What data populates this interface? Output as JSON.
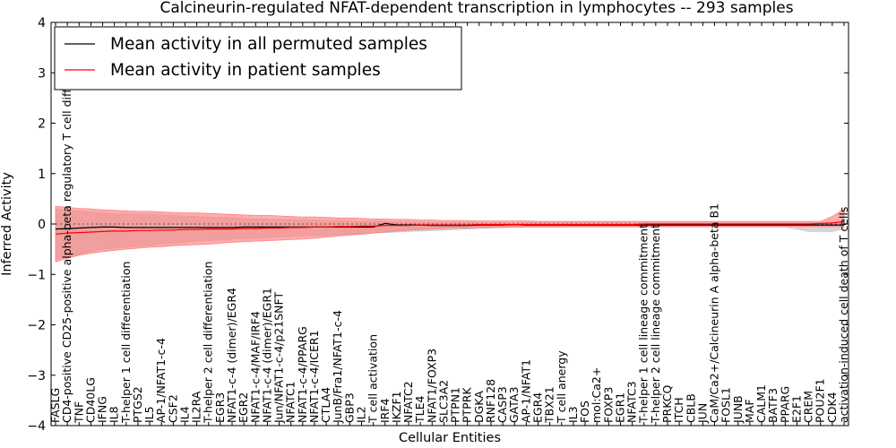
{
  "chart_data": {
    "type": "line",
    "title": "Calcineurin-regulated NFAT-dependent transcription in lymphocytes -- 293 samples",
    "xlabel": "Cellular Entities",
    "ylabel": "Inferred Activity",
    "ylim": [
      -4,
      4
    ],
    "yticks": [
      -4,
      -3,
      -2,
      -1,
      0,
      1,
      2,
      3,
      4
    ],
    "reference_line": 0,
    "legend": {
      "position": "top-left",
      "entries": [
        {
          "label": "Mean activity in all permuted samples",
          "color": "#000000"
        },
        {
          "label": "Mean activity in patient samples",
          "color": "#ff0000"
        }
      ]
    },
    "categories": [
      "FASLG",
      "CD4-positive CD25-positive alpha-beta regulatory T cell differentiation",
      "TNF",
      "CD40LG",
      "IFNG",
      "IL8",
      "T-helper 1 cell differentiation",
      "PTGS2",
      "IL5",
      "AP-1/NFAT1-c-4",
      "CSF2",
      "IL4",
      "IL2RA",
      "T-helper 2 cell differentiation",
      "EGR3",
      "NFAT1-c-4 (dimer)/EGR4",
      "EGR2",
      "NFAT1-c-4/MAF/IRF4",
      "NFAT1-c-4 (dimer)/EGR1",
      "Jun/NFAT1-c-4/p21SNFT",
      "NFATC1",
      "NFAT1-c-4/PPARG",
      "NFAT1-c-4/ICER1",
      "CTLA4",
      "JunB/Fra1/NFAT1-c-4",
      "GBP3",
      "IL2",
      "T cell activation",
      "IRF4",
      "IKZF1",
      "NFATC2",
      "TLE4",
      "NFAT1/FOXP3",
      "SLC3A2",
      "PTPN1",
      "PTPRK",
      "DGKA",
      "RNF128",
      "CASP3",
      "GATA3",
      "AP-1/NFAT1",
      "EGR4",
      "TBX21",
      "T cell anergy",
      "IL3",
      "FOS",
      "mol:Ca2+",
      "FOXP3",
      "EGR1",
      "NFATC3",
      "T-helper 1 cell lineage commitment",
      "T-helper 2 cell lineage commitment",
      "PRKCQ",
      "ITCH",
      "CBLB",
      "JUN",
      "CaM/Ca2+/Calcineurin A alpha-beta B1",
      "FOSL1",
      "JUNB",
      "MAF",
      "CALM1",
      "BATF3",
      "PPARG",
      "E2F1",
      "CREM",
      "POU2F1",
      "CDK4",
      "activation-induced cell death of T cells"
    ],
    "series": [
      {
        "name": "Mean activity in all permuted samples",
        "color": "#000000",
        "band_color": "#c8c8c8",
        "mean": [
          -0.1,
          -0.09,
          -0.08,
          -0.07,
          -0.06,
          -0.06,
          -0.07,
          -0.07,
          -0.07,
          -0.07,
          -0.07,
          -0.07,
          -0.07,
          -0.07,
          -0.07,
          -0.07,
          -0.06,
          -0.06,
          -0.06,
          -0.06,
          -0.06,
          -0.06,
          -0.06,
          -0.06,
          -0.06,
          -0.06,
          -0.06,
          -0.06,
          0.01,
          -0.02,
          -0.02,
          -0.02,
          -0.03,
          -0.03,
          -0.03,
          -0.03,
          -0.02,
          -0.02,
          -0.02,
          -0.01,
          -0.02,
          -0.02,
          -0.02,
          -0.02,
          -0.02,
          -0.02,
          -0.02,
          -0.02,
          -0.02,
          -0.02,
          -0.02,
          -0.02,
          -0.02,
          -0.02,
          -0.02,
          -0.02,
          -0.02,
          -0.02,
          -0.02,
          -0.02,
          -0.02,
          -0.02,
          -0.02,
          -0.02,
          -0.02,
          -0.02,
          -0.02,
          -0.02
        ],
        "upper": [
          0.3,
          0.28,
          0.26,
          0.24,
          0.22,
          0.2,
          0.2,
          0.2,
          0.19,
          0.18,
          0.17,
          0.16,
          0.15,
          0.14,
          0.13,
          0.12,
          0.11,
          0.1,
          0.1,
          0.09,
          0.09,
          0.08,
          0.08,
          0.07,
          0.06,
          0.06,
          0.05,
          0.05,
          0.05,
          0.04,
          0.04,
          0.04,
          0.03,
          0.03,
          0.03,
          0.03,
          0.03,
          0.03,
          0.03,
          0.03,
          0.03,
          0.03,
          0.03,
          0.03,
          0.03,
          0.03,
          0.03,
          0.03,
          0.03,
          0.02,
          0.02,
          0.02,
          0.02,
          0.02,
          0.02,
          0.02,
          0.02,
          0.02,
          0.02,
          0.02,
          0.02,
          0.02,
          0.02,
          0.02,
          0.02,
          0.02,
          0.02,
          0.02
        ],
        "lower": [
          -0.7,
          -0.65,
          -0.6,
          -0.55,
          -0.5,
          -0.48,
          -0.46,
          -0.44,
          -0.42,
          -0.4,
          -0.38,
          -0.36,
          -0.34,
          -0.33,
          -0.32,
          -0.3,
          -0.29,
          -0.28,
          -0.27,
          -0.26,
          -0.25,
          -0.24,
          -0.23,
          -0.22,
          -0.21,
          -0.2,
          -0.19,
          -0.18,
          -0.17,
          -0.16,
          -0.15,
          -0.14,
          -0.13,
          -0.12,
          -0.11,
          -0.1,
          -0.09,
          -0.08,
          -0.07,
          -0.07,
          -0.06,
          -0.06,
          -0.06,
          -0.06,
          -0.06,
          -0.06,
          -0.06,
          -0.06,
          -0.06,
          -0.06,
          -0.06,
          -0.06,
          -0.06,
          -0.06,
          -0.06,
          -0.06,
          -0.06,
          -0.06,
          -0.06,
          -0.06,
          -0.06,
          -0.06,
          -0.06,
          -0.1,
          -0.15,
          -0.15,
          -0.15,
          -0.1
        ]
      },
      {
        "name": "Mean activity in patient samples",
        "color": "#ff0000",
        "band_color": "#ff8080",
        "mean": [
          -0.2,
          -0.18,
          -0.17,
          -0.16,
          -0.15,
          -0.14,
          -0.14,
          -0.13,
          -0.13,
          -0.12,
          -0.12,
          -0.11,
          -0.11,
          -0.1,
          -0.1,
          -0.1,
          -0.09,
          -0.09,
          -0.08,
          -0.08,
          -0.07,
          -0.07,
          -0.06,
          -0.06,
          -0.05,
          -0.05,
          -0.04,
          -0.04,
          -0.03,
          -0.03,
          -0.03,
          -0.02,
          -0.02,
          -0.02,
          -0.02,
          -0.02,
          -0.01,
          -0.01,
          -0.01,
          -0.01,
          -0.01,
          -0.01,
          -0.01,
          -0.01,
          -0.01,
          -0.01,
          -0.01,
          -0.01,
          -0.01,
          -0.01,
          0,
          0,
          0,
          0,
          0,
          0,
          0,
          0,
          0,
          0,
          0,
          0,
          0,
          0,
          0,
          0.01,
          0.02,
          0.05
        ],
        "upper": [
          0.35,
          0.33,
          0.31,
          0.3,
          0.28,
          0.27,
          0.26,
          0.25,
          0.25,
          0.24,
          0.23,
          0.22,
          0.22,
          0.21,
          0.2,
          0.19,
          0.18,
          0.17,
          0.17,
          0.16,
          0.15,
          0.14,
          0.14,
          0.13,
          0.12,
          0.12,
          0.11,
          0.1,
          0.1,
          0.09,
          0.09,
          0.08,
          0.08,
          0.07,
          0.07,
          0.07,
          0.06,
          0.06,
          0.06,
          0.06,
          0.06,
          0.05,
          0.05,
          0.05,
          0.05,
          0.05,
          0.05,
          0.05,
          0.05,
          0.05,
          0.05,
          0.05,
          0.05,
          0.05,
          0.05,
          0.05,
          0.05,
          0.05,
          0.05,
          0.05,
          0.05,
          0.05,
          0.05,
          0.05,
          0.05,
          0.05,
          0.15,
          0.3
        ],
        "lower": [
          -0.75,
          -0.68,
          -0.62,
          -0.58,
          -0.55,
          -0.52,
          -0.5,
          -0.48,
          -0.46,
          -0.45,
          -0.43,
          -0.42,
          -0.41,
          -0.4,
          -0.38,
          -0.36,
          -0.35,
          -0.34,
          -0.33,
          -0.32,
          -0.31,
          -0.3,
          -0.28,
          -0.26,
          -0.24,
          -0.22,
          -0.2,
          -0.18,
          -0.16,
          -0.14,
          -0.12,
          -0.11,
          -0.1,
          -0.09,
          -0.08,
          -0.08,
          -0.07,
          -0.07,
          -0.07,
          -0.06,
          -0.06,
          -0.06,
          -0.06,
          -0.06,
          -0.05,
          -0.05,
          -0.05,
          -0.05,
          -0.05,
          -0.05,
          -0.05,
          -0.05,
          -0.05,
          -0.05,
          -0.05,
          -0.05,
          -0.05,
          -0.05,
          -0.05,
          -0.05,
          -0.05,
          -0.05,
          -0.05,
          -0.05,
          -0.05,
          -0.05,
          -0.05,
          -0.05
        ]
      }
    ]
  }
}
